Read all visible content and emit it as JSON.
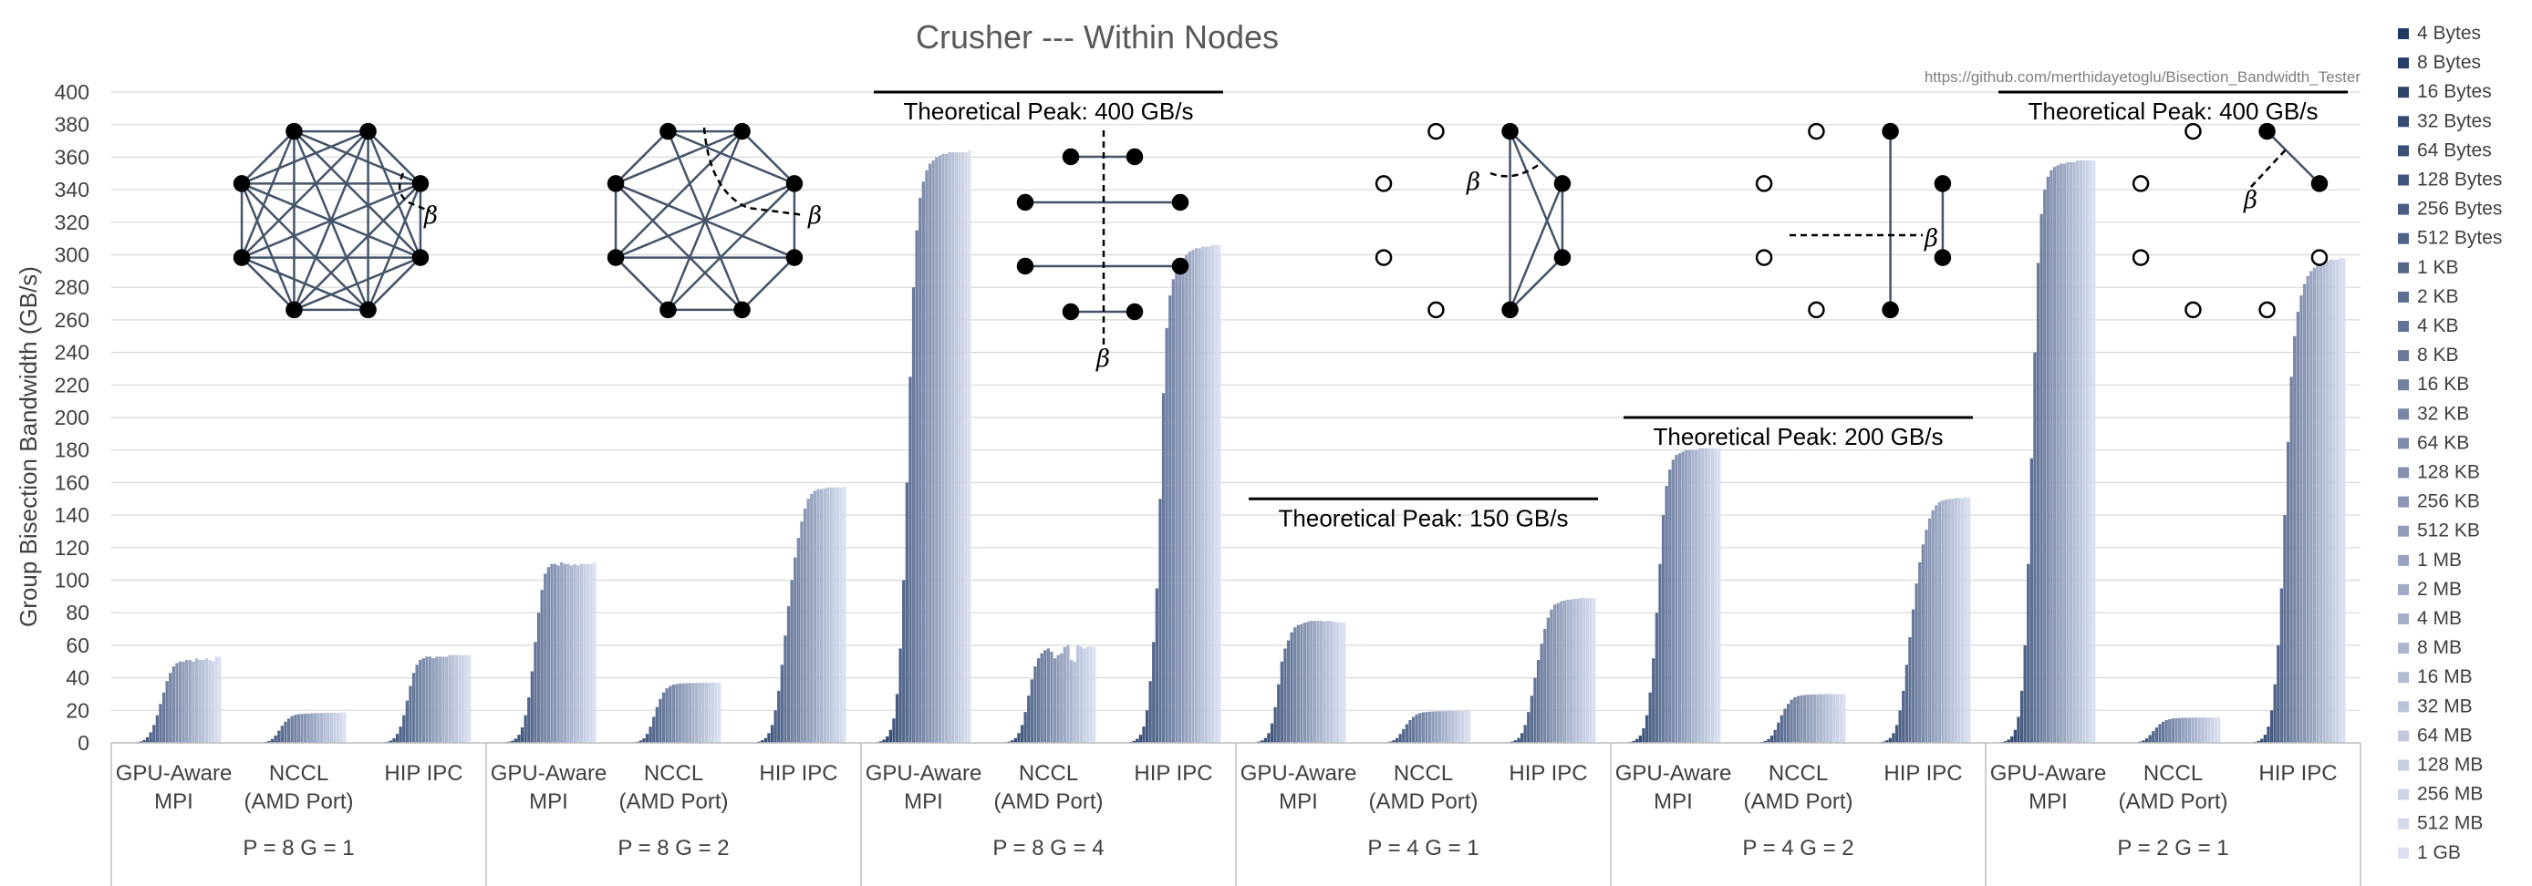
{
  "chart_data": {
    "type": "bar",
    "title": "Crusher --- Within Nodes",
    "source_note": "https://github.com/merthidayetoglu/Bisection_Bandwidth_Tester",
    "ylabel": "Group Bisection Bandwidth (GB/s)",
    "xlabel": "",
    "ylim": [
      0,
      400
    ],
    "yticks": [
      0,
      20,
      40,
      60,
      80,
      100,
      120,
      140,
      160,
      180,
      200,
      220,
      240,
      260,
      280,
      300,
      320,
      340,
      360,
      380,
      400
    ],
    "grid": true,
    "legend_position": "right",
    "color_from": "#203864",
    "color_to": "#dae0f1",
    "series": [
      {
        "name": "4 Bytes"
      },
      {
        "name": "8 Bytes"
      },
      {
        "name": "16 Bytes"
      },
      {
        "name": "32 Bytes"
      },
      {
        "name": "64 Bytes"
      },
      {
        "name": "128 Bytes"
      },
      {
        "name": "256 Bytes"
      },
      {
        "name": "512 Bytes"
      },
      {
        "name": "1 KB"
      },
      {
        "name": "2 KB"
      },
      {
        "name": "4 KB"
      },
      {
        "name": "8 KB"
      },
      {
        "name": "16 KB"
      },
      {
        "name": "32 KB"
      },
      {
        "name": "64 KB"
      },
      {
        "name": "128 KB"
      },
      {
        "name": "256 KB"
      },
      {
        "name": "512 KB"
      },
      {
        "name": "1 MB"
      },
      {
        "name": "2 MB"
      },
      {
        "name": "4 MB"
      },
      {
        "name": "8 MB"
      },
      {
        "name": "16 MB"
      },
      {
        "name": "32 MB"
      },
      {
        "name": "64 MB"
      },
      {
        "name": "128 MB"
      },
      {
        "name": "256 MB"
      },
      {
        "name": "512 MB"
      },
      {
        "name": "1 GB"
      }
    ],
    "groups": [
      {
        "label": "P = 8  G = 1",
        "peak_label": "",
        "peak_value": null,
        "categories": [
          {
            "label1": "GPU-Aware",
            "label2": "MPI",
            "values": [
              0.1,
              0.2,
              0.3,
              0.5,
              0.9,
              1.8,
              3.5,
              6.5,
              11,
              17,
              24,
              31,
              38,
              43,
              47,
              49,
              50,
              50,
              51,
              51,
              50,
              52,
              51,
              51,
              52,
              51,
              50,
              53,
              53
            ]
          },
          {
            "label1": "NCCL",
            "label2": "(AMD Port)",
            "values": [
              0.05,
              0.1,
              0.2,
              0.3,
              0.6,
              1.2,
              2.4,
              4.5,
              7.5,
              10.5,
              13,
              15,
              16.5,
              17.2,
              17.6,
              17.8,
              18,
              18,
              18.2,
              18.3,
              18.3,
              18.4,
              18.4,
              18.5,
              18.5,
              18.5,
              18.5,
              18.6,
              18.6
            ]
          },
          {
            "label1": "HIP IPC",
            "label2": "",
            "values": [
              0.1,
              0.2,
              0.4,
              0.7,
              1.4,
              2.8,
              5.5,
              10,
              17,
              26,
              35,
              43,
              48,
              51,
              52,
              53,
              53,
              52,
              53,
              53,
              53,
              53,
              54,
              54,
              54,
              54,
              54,
              54,
              54
            ]
          }
        ]
      },
      {
        "label": "P = 8  G = 2",
        "peak_label": "",
        "peak_value": null,
        "categories": [
          {
            "label1": "GPU-Aware",
            "label2": "MPI",
            "values": [
              0.2,
              0.4,
              0.7,
              1.3,
              2.6,
              5,
              9.5,
              17,
              28,
              44,
              62,
              80,
              94,
              104,
              108,
              110,
              110,
              109,
              111,
              110,
              110,
              109,
              110,
              109,
              110,
              110,
              110,
              110,
              111
            ]
          },
          {
            "label1": "NCCL",
            "label2": "(AMD Port)",
            "values": [
              0.1,
              0.2,
              0.4,
              0.7,
              1.4,
              2.8,
              5.5,
              10,
              16,
              22,
              27,
              31,
              33.5,
              35,
              35.8,
              36.2,
              36.5,
              36.6,
              36.7,
              36.8,
              36.8,
              36.9,
              36.9,
              37,
              37,
              37,
              37,
              37,
              37
            ]
          },
          {
            "label1": "HIP IPC",
            "label2": "",
            "values": [
              0.2,
              0.4,
              0.8,
              1.6,
              3,
              6,
              11,
              20,
              32,
              48,
              66,
              84,
              100,
              114,
              126,
              136,
              144,
              150,
              153,
              155,
              156,
              156,
              156.5,
              157,
              157,
              157,
              157,
              157,
              157.5
            ]
          }
        ]
      },
      {
        "label": "P = 8  G = 4",
        "peak_label": "Theoretical Peak: 400 GB/s",
        "peak_value": 400,
        "categories": [
          {
            "label1": "GPU-Aware",
            "label2": "MPI",
            "values": [
              0.5,
              1,
              2,
              4,
              8,
              15,
              30,
              58,
              100,
              160,
              225,
              280,
              315,
              335,
              345,
              352,
              356,
              358,
              360,
              361,
              362,
              362,
              363,
              363,
              363,
              363,
              363,
              363,
              364
            ]
          },
          {
            "label1": "NCCL",
            "label2": "(AMD Port)",
            "values": [
              0.2,
              0.4,
              0.8,
              1.6,
              3,
              6,
              11,
              19,
              29,
              39,
              47,
              52,
              55,
              57,
              58,
              56,
              52,
              54,
              55,
              59,
              60,
              51,
              50,
              60,
              59,
              58,
              59,
              59,
              59
            ]
          },
          {
            "label1": "HIP IPC",
            "label2": "",
            "values": [
              0.3,
              0.6,
              1.2,
              2.5,
              5,
              10,
              20,
              38,
              62,
              95,
              150,
              215,
              255,
              275,
              285,
              290,
              295,
              298,
              300,
              302,
              303,
              304,
              304,
              305,
              305,
              305,
              306,
              306,
              306
            ]
          }
        ]
      },
      {
        "label": "P = 4  G = 1",
        "peak_label": "Theoretical Peak: 150 GB/s",
        "peak_value": 150,
        "categories": [
          {
            "label1": "GPU-Aware",
            "label2": "MPI",
            "values": [
              0.2,
              0.4,
              0.8,
              1.5,
              3,
              6,
              12,
              22,
              36,
              50,
              58,
              63,
              68,
              71,
              72.5,
              73,
              74,
              74.5,
              75,
              75,
              75,
              75,
              74.5,
              75,
              75,
              74.5,
              74,
              74,
              74
            ]
          },
          {
            "label1": "NCCL",
            "label2": "(AMD Port)",
            "values": [
              0.05,
              0.1,
              0.2,
              0.4,
              0.8,
              1.6,
              3,
              5.5,
              8.5,
              11.5,
              14,
              16,
              17.5,
              18.3,
              18.8,
              19,
              19.2,
              19.3,
              19.4,
              19.5,
              19.5,
              19.5,
              19.6,
              19.6,
              19.6,
              19.6,
              19.6,
              19.6,
              19.6
            ]
          },
          {
            "label1": "HIP IPC",
            "label2": "",
            "values": [
              0.1,
              0.2,
              0.4,
              0.8,
              1.6,
              3,
              6,
              11,
              19,
              29,
              40,
              51,
              61,
              70,
              77,
              82,
              85,
              86,
              87,
              87.5,
              88,
              88,
              88.5,
              88.5,
              89,
              89,
              89,
              89,
              89
            ]
          }
        ]
      },
      {
        "label": "P = 4  G = 2",
        "peak_label": "Theoretical Peak: 200 GB/s",
        "peak_value": 200,
        "categories": [
          {
            "label1": "GPU-Aware",
            "label2": "MPI",
            "values": [
              0.3,
              0.6,
              1.2,
              2.4,
              4.5,
              9,
              17,
              31,
              52,
              80,
              110,
              140,
              158,
              168,
              174,
              177,
              178,
              179,
              180,
              180,
              180,
              180,
              181,
              181,
              181,
              181,
              181,
              181,
              181
            ]
          },
          {
            "label1": "NCCL",
            "label2": "(AMD Port)",
            "values": [
              0.1,
              0.2,
              0.3,
              0.6,
              1.2,
              2.4,
              4.5,
              8,
              12.5,
              17,
              21,
              24,
              26.5,
              28,
              28.8,
              29.2,
              29.5,
              29.6,
              29.7,
              29.8,
              29.8,
              29.9,
              29.9,
              30,
              30,
              30,
              30,
              30,
              30
            ]
          },
          {
            "label1": "HIP IPC",
            "label2": "",
            "values": [
              0.2,
              0.4,
              0.8,
              1.6,
              3,
              6,
              11,
              20,
              32,
              48,
              65,
              82,
              98,
              111,
              122,
              131,
              138,
              143,
              146,
              148,
              149,
              149.5,
              150,
              150,
              150.5,
              150.5,
              150.5,
              151,
              151
            ]
          }
        ]
      },
      {
        "label": "P = 2  G = 1",
        "peak_label": "Theoretical Peak: 400 GB/s",
        "peak_value": 400,
        "categories": [
          {
            "label1": "GPU-Aware",
            "label2": "MPI",
            "values": [
              0.5,
              1,
              2,
              4,
              8,
              16,
              32,
              60,
              110,
              175,
              240,
              295,
              325,
              340,
              348,
              352,
              354,
              355,
              356,
              356,
              357,
              357,
              357,
              358,
              358,
              358,
              358,
              358,
              358
            ]
          },
          {
            "label1": "NCCL",
            "label2": "(AMD Port)",
            "values": [
              0.05,
              0.1,
              0.2,
              0.4,
              0.8,
              1.5,
              2.8,
              4.8,
              7.2,
              9.5,
              11.5,
              13,
              14,
              14.6,
              15,
              15.2,
              15.3,
              15.4,
              15.5,
              15.5,
              15.5,
              15.6,
              15.6,
              15.6,
              15.6,
              15.6,
              15.6,
              15.6,
              15.6
            ]
          },
          {
            "label1": "HIP IPC",
            "label2": "",
            "values": [
              0.3,
              0.6,
              1.2,
              2.5,
              5,
              10,
              20,
              36,
              60,
              95,
              140,
              185,
              225,
              250,
              265,
              275,
              282,
              287,
              290,
              292,
              294,
              295,
              296,
              296,
              297,
              297,
              297,
              298,
              298
            ]
          }
        ]
      }
    ]
  }
}
